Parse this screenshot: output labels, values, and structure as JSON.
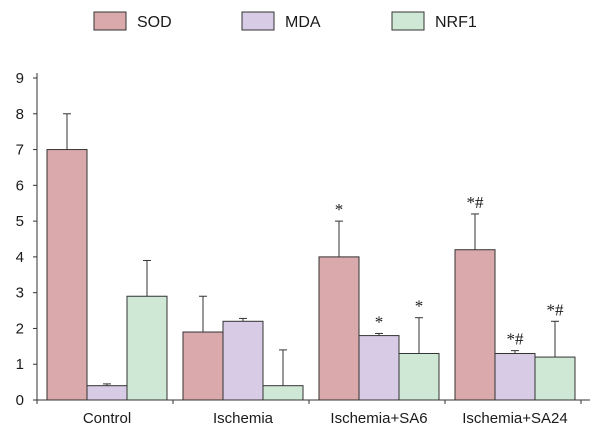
{
  "chart_data": {
    "type": "bar",
    "categories": [
      "Control",
      "Ischemia",
      "Ischemia+SA6",
      "Ischemia+SA24"
    ],
    "ylim": [
      0,
      9
    ],
    "yticks": [
      "0",
      "1",
      "2",
      "3",
      "4",
      "5",
      "6",
      "7",
      "8",
      "9"
    ],
    "legend_position": "top",
    "grid": false,
    "series": [
      {
        "name": "SOD",
        "color": "#d9a9ab",
        "values": [
          7.0,
          1.9,
          4.0,
          4.2
        ],
        "errors": [
          1.0,
          1.0,
          1.0,
          1.0
        ],
        "annotations": [
          "",
          "",
          "*",
          "*#"
        ]
      },
      {
        "name": "MDA",
        "color": "#d7cbe6",
        "values": [
          0.4,
          2.2,
          1.8,
          1.3
        ],
        "errors": [
          0.05,
          0.08,
          0.06,
          0.08
        ],
        "annotations": [
          "",
          "",
          "*",
          "*#"
        ]
      },
      {
        "name": "NRF1",
        "color": "#cfe8d6",
        "values": [
          2.9,
          0.4,
          1.3,
          1.2
        ],
        "errors": [
          1.0,
          1.0,
          1.0,
          1.0
        ],
        "annotations": [
          "",
          "",
          "*",
          "*#"
        ]
      }
    ]
  }
}
